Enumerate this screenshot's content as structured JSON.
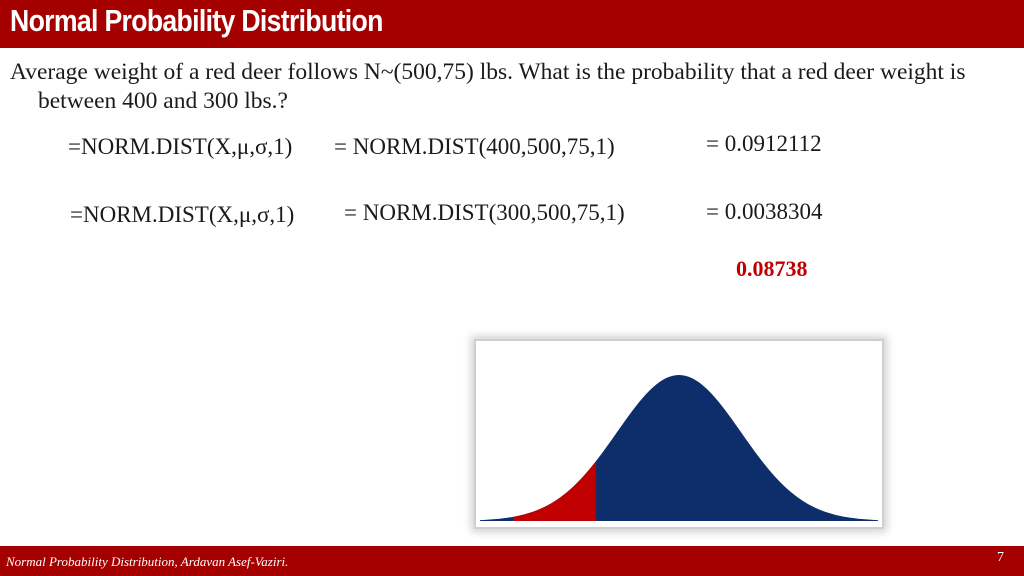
{
  "slide": {
    "title": "Normal Probability Distribution",
    "question": "Average weight of a red deer follows N~(500,75) lbs. What is the probability that a red deer weight is between 400 and 300 lbs.?",
    "formulas": [
      {
        "generic": "=NORM.DIST(X,μ,σ,1)",
        "specific": "= NORM.DIST(400,500,75,1)",
        "result": "= 0.0912112"
      },
      {
        "generic": "=NORM.DIST(X,μ,σ,1)",
        "specific": "= NORM.DIST(300,500,75,1)",
        "result": "= 0.0038304"
      }
    ],
    "answer": "0.08738",
    "footer": "Normal Probability Distribution, Ardavan Asef-Vaziri.",
    "page_number": "7"
  },
  "colors": {
    "brand": "#a50000",
    "curve_fill": "#0d2d6b",
    "shaded_region": "#c00000",
    "answer": "#c00000"
  },
  "figure": {
    "distribution": "normal",
    "mean": 500,
    "sd": 75,
    "shaded_from": 300,
    "shaded_to": 400,
    "display_range": [
      260,
      740
    ]
  }
}
